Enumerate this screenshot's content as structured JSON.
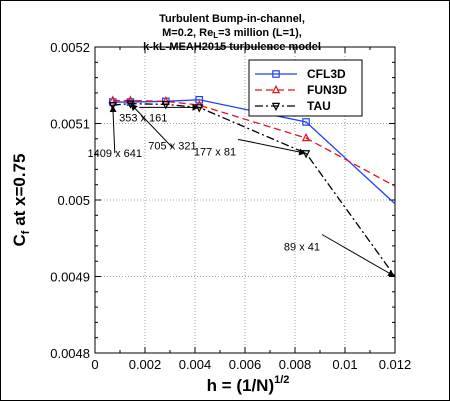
{
  "chart_data": {
    "type": "line",
    "title_lines": [
      "Turbulent Bump-in-channel,",
      "M=0.2, Re",
      "=3 million (L=1),",
      "k-kL-MEAH2015 turbulence model"
    ],
    "title_sub": "L",
    "xlabel_main": "h = (1/N)",
    "xlabel_sup": "1/2",
    "ylabel_main": "C",
    "ylabel_sub": "f",
    "ylabel_rest": " at x=0.75",
    "xlim": [
      0,
      0.012
    ],
    "ylim": [
      0.0048,
      0.0052
    ],
    "x_ticks": [
      0,
      0.002,
      0.004,
      0.006,
      0.008,
      0.01,
      0.012
    ],
    "x_tick_labels": [
      "0",
      "0.002",
      "0.004",
      "0.006",
      "0.008",
      "0.01",
      "0.012"
    ],
    "y_ticks": [
      0.0048,
      0.0049,
      0.005,
      0.0051,
      0.0052
    ],
    "y_tick_labels": [
      "0.0048",
      "0.0049",
      "0.005",
      "0.0051",
      "0.0052"
    ],
    "grid": true,
    "legend_position": "top-right",
    "series": [
      {
        "name": "CFL3D",
        "color": "#1f3fff",
        "dash": "solid",
        "marker": "square",
        "x": [
          0.000711,
          0.001418,
          0.002833,
          0.00417,
          0.008443,
          0.012
        ],
        "y": [
          0.005128,
          0.005128,
          0.005129,
          0.005131,
          0.005102,
          0.004995
        ]
      },
      {
        "name": "FUN3D",
        "color": "#e0141e",
        "dash": "dashed",
        "marker": "triangle-up",
        "x": [
          0.000711,
          0.001418,
          0.002833,
          0.00417,
          0.008443,
          0.012
        ],
        "y": [
          0.00513,
          0.00513,
          0.005129,
          0.005124,
          0.005081,
          0.005018
        ]
      },
      {
        "name": "TAU",
        "color": "#000000",
        "dash": "dashdot",
        "marker": "triangle-down",
        "x": [
          0.000711,
          0.001418,
          0.002833,
          0.00417,
          0.008443,
          0.012
        ],
        "y": [
          0.005124,
          0.005126,
          0.005125,
          0.005121,
          0.005061,
          0.0049
        ]
      }
    ],
    "annotations": [
      {
        "text": "1409 x 641",
        "x": 0.000711,
        "y": 0.005124
      },
      {
        "text": "705 x 321",
        "x": 0.001418,
        "y": 0.005126
      },
      {
        "text": "353 x 161",
        "x": 0.00417,
        "y": 0.005121
      },
      {
        "text": "177 x 81",
        "x": 0.008443,
        "y": 0.005061
      },
      {
        "text": "89 x 41",
        "x": 0.012,
        "y": 0.0049
      }
    ]
  }
}
